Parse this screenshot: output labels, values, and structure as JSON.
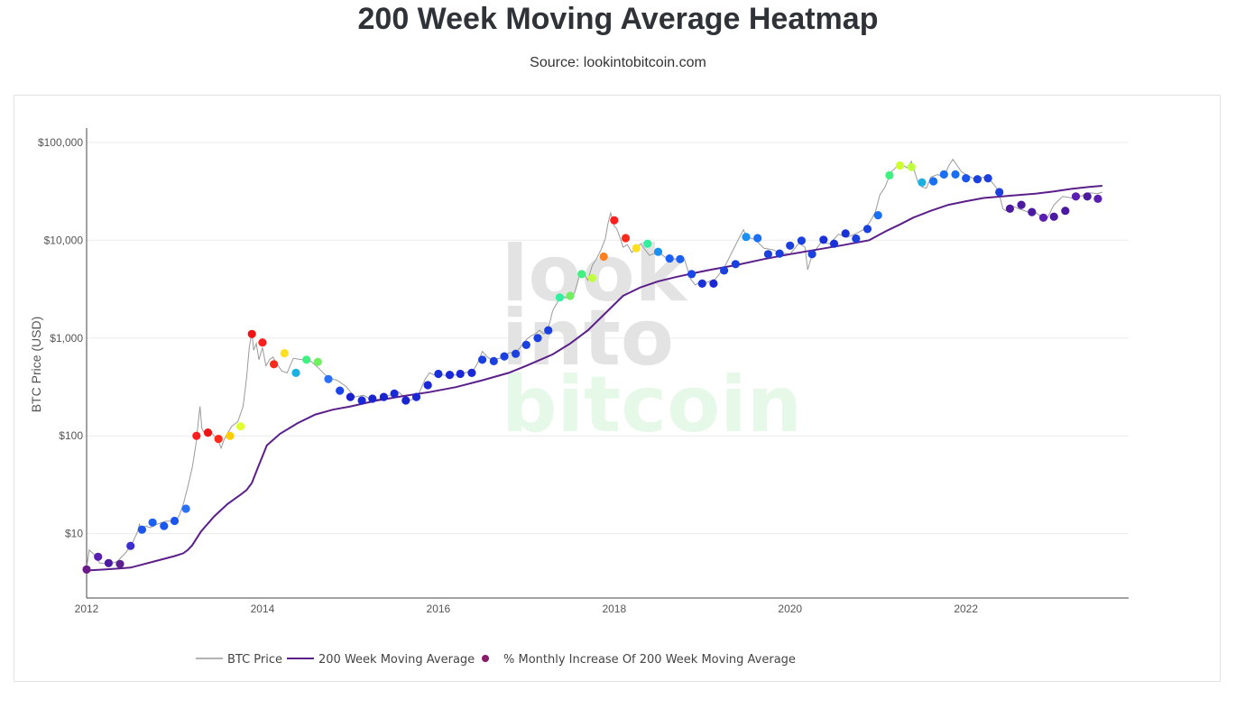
{
  "header": {
    "title": "200 Week Moving Average Heatmap",
    "subtitle": "Source: lookintobitcoin.com"
  },
  "watermark": {
    "line1": "look",
    "line2": "into",
    "line3": "bitcoin"
  },
  "colors": {
    "price_line": "#9a9a9a",
    "ma_line": "#5b1f8a",
    "grid": "#ececec",
    "watermark_gray": "#e3e3e3",
    "watermark_green": "#e6f8e8"
  },
  "legend": {
    "btc_price": "BTC Price",
    "ma": "200 Week Moving Average",
    "dots": "% Monthly Increase Of 200 Week Moving Average"
  },
  "chart_data": {
    "type": "line",
    "title": "200 Week Moving Average Heatmap",
    "ylabel": "BTC Price (USD)",
    "xlabel": "",
    "y_scale": "log",
    "xlim": [
      2012.0,
      2023.85
    ],
    "ylim": [
      2.2,
      140000
    ],
    "x_ticks": [
      2012,
      2014,
      2016,
      2018,
      2020,
      2022
    ],
    "x_tick_labels": [
      "2012",
      "2014",
      "2016",
      "2018",
      "2020",
      "2022"
    ],
    "y_ticks": [
      10,
      100,
      1000,
      10000,
      100000
    ],
    "y_tick_labels": [
      "$10",
      "$100",
      "$1,000",
      "$10,000",
      "$100,000"
    ],
    "grid": true,
    "legend_position": "bottom",
    "series": [
      {
        "name": "BTC Price",
        "color": "#9a9a9a",
        "x": [
          2012.0,
          2012.03,
          2012.08,
          2012.15,
          2012.25,
          2012.35,
          2012.45,
          2012.52,
          2012.58,
          2012.6,
          2012.63,
          2012.67,
          2012.72,
          2012.8,
          2012.9,
          2013.0,
          2013.05,
          2013.1,
          2013.15,
          2013.2,
          2013.22,
          2013.25,
          2013.27,
          2013.29,
          2013.31,
          2013.33,
          2013.38,
          2013.45,
          2013.5,
          2013.53,
          2013.56,
          2013.6,
          2013.65,
          2013.72,
          2013.78,
          2013.82,
          2013.85,
          2013.88,
          2013.9,
          2013.93,
          2013.96,
          2014.0,
          2014.04,
          2014.08,
          2014.12,
          2014.16,
          2014.22,
          2014.28,
          2014.35,
          2014.45,
          2014.55,
          2014.65,
          2014.75,
          2014.85,
          2014.95,
          2015.05,
          2015.15,
          2015.25,
          2015.35,
          2015.45,
          2015.55,
          2015.65,
          2015.75,
          2015.8,
          2015.85,
          2015.9,
          2015.95,
          2016.0,
          2016.1,
          2016.2,
          2016.3,
          2016.4,
          2016.45,
          2016.5,
          2016.55,
          2016.6,
          2016.7,
          2016.8,
          2016.9,
          2017.0,
          2017.05,
          2017.1,
          2017.15,
          2017.2,
          2017.25,
          2017.3,
          2017.35,
          2017.4,
          2017.45,
          2017.5,
          2017.55,
          2017.6,
          2017.65,
          2017.7,
          2017.75,
          2017.8,
          2017.85,
          2017.9,
          2017.93,
          2017.96,
          2018.0,
          2018.03,
          2018.06,
          2018.1,
          2018.15,
          2018.2,
          2018.3,
          2018.4,
          2018.5,
          2018.6,
          2018.7,
          2018.8,
          2018.87,
          2018.92,
          2018.97,
          2019.05,
          2019.15,
          2019.25,
          2019.35,
          2019.42,
          2019.47,
          2019.5,
          2019.55,
          2019.6,
          2019.7,
          2019.8,
          2019.9,
          2020.0,
          2020.1,
          2020.17,
          2020.2,
          2020.25,
          2020.35,
          2020.45,
          2020.55,
          2020.65,
          2020.75,
          2020.85,
          2020.92,
          2020.97,
          2021.02,
          2021.08,
          2021.15,
          2021.22,
          2021.28,
          2021.33,
          2021.38,
          2021.45,
          2021.5,
          2021.55,
          2021.6,
          2021.68,
          2021.75,
          2021.8,
          2021.85,
          2021.9,
          2021.95,
          2022.0,
          2022.1,
          2022.2,
          2022.3,
          2022.37,
          2022.42,
          2022.45,
          2022.5,
          2022.6,
          2022.7,
          2022.8,
          2022.87,
          2022.92,
          2023.0,
          2023.1,
          2023.2,
          2023.3,
          2023.4,
          2023.5,
          2023.55
        ],
        "values": [
          4.5,
          6.8,
          6.2,
          5.0,
          4.9,
          5.2,
          6.5,
          8.0,
          10.5,
          12.5,
          10.8,
          12.0,
          11.5,
          12.5,
          13.4,
          13.5,
          15,
          20,
          30,
          47,
          60,
          90,
          140,
          200,
          120,
          110,
          118,
          100,
          88,
          75,
          90,
          105,
          125,
          140,
          200,
          400,
          800,
          1150,
          750,
          880,
          600,
          800,
          520,
          600,
          640,
          550,
          460,
          440,
          620,
          600,
          580,
          480,
          390,
          370,
          320,
          250,
          260,
          230,
          240,
          260,
          280,
          230,
          240,
          300,
          380,
          440,
          420,
          430,
          410,
          420,
          440,
          470,
          560,
          730,
          650,
          600,
          620,
          700,
          740,
          960,
          1050,
          1100,
          1200,
          1100,
          1250,
          1900,
          2300,
          2700,
          2600,
          2500,
          2900,
          4200,
          4600,
          3900,
          5500,
          6500,
          8000,
          10500,
          15000,
          19000,
          14000,
          13000,
          11000,
          8500,
          9000,
          7500,
          9200,
          7000,
          7600,
          6500,
          6400,
          6300,
          4000,
          3500,
          3700,
          3700,
          4000,
          5200,
          7900,
          10500,
          12800,
          11000,
          10500,
          10200,
          8300,
          8000,
          7400,
          7200,
          9300,
          8500,
          5000,
          7000,
          9500,
          9200,
          11500,
          10700,
          11700,
          13000,
          16000,
          19500,
          29000,
          35000,
          50000,
          57000,
          59000,
          55000,
          64000,
          40000,
          35000,
          34000,
          44000,
          47000,
          43000,
          57000,
          67000,
          58000,
          50000,
          47000,
          42000,
          44000,
          39000,
          32000,
          21000,
          20000,
          23000,
          21000,
          19500,
          19000,
          17000,
          16500,
          23000,
          28000,
          27000,
          28000,
          30500,
          30000,
          31000
        ],
        "dots": {
          "x": [
            2012.0,
            2012.13,
            2012.25,
            2012.38,
            2012.5,
            2012.63,
            2012.75,
            2012.88,
            2013.0,
            2013.13,
            2013.25,
            2013.38,
            2013.5,
            2013.63,
            2013.75,
            2013.88,
            2014.0,
            2014.13,
            2014.25,
            2014.38,
            2014.5,
            2014.63,
            2014.75,
            2014.88,
            2015.0,
            2015.13,
            2015.25,
            2015.38,
            2015.5,
            2015.63,
            2015.75,
            2015.88,
            2016.0,
            2016.13,
            2016.25,
            2016.38,
            2016.5,
            2016.63,
            2016.75,
            2016.88,
            2017.0,
            2017.13,
            2017.25,
            2017.38,
            2017.5,
            2017.63,
            2017.75,
            2017.88,
            2018.0,
            2018.13,
            2018.25,
            2018.38,
            2018.5,
            2018.63,
            2018.75,
            2018.88,
            2019.0,
            2019.13,
            2019.25,
            2019.38,
            2019.5,
            2019.63,
            2019.75,
            2019.88,
            2020.0,
            2020.13,
            2020.25,
            2020.38,
            2020.5,
            2020.63,
            2020.75,
            2020.88,
            2021.0,
            2021.13,
            2021.25,
            2021.38,
            2021.5,
            2021.63,
            2021.75,
            2021.88,
            2022.0,
            2022.13,
            2022.25,
            2022.38,
            2022.5,
            2022.63,
            2022.75,
            2022.88,
            2023.0,
            2023.13,
            2023.25,
            2023.38,
            2023.5
          ],
          "values": [
            4.3,
            5.8,
            5.0,
            4.9,
            7.5,
            11.0,
            13.0,
            12.0,
            13.5,
            18.0,
            100,
            108,
            93,
            100,
            125,
            1100,
            900,
            540,
            700,
            440,
            600,
            570,
            380,
            290,
            250,
            230,
            240,
            250,
            270,
            230,
            250,
            330,
            430,
            420,
            430,
            440,
            600,
            580,
            650,
            690,
            850,
            1000,
            1200,
            2600,
            2700,
            4500,
            4100,
            6800,
            16000,
            10500,
            8300,
            9200,
            7600,
            6500,
            6400,
            4500,
            3600,
            3600,
            4900,
            5700,
            10800,
            10500,
            7200,
            7300,
            8800,
            9900,
            7200,
            10100,
            9200,
            11700,
            10400,
            13000,
            18000,
            46000,
            58000,
            56000,
            39000,
            40000,
            47000,
            47000,
            43000,
            42000,
            43000,
            31000,
            21000,
            23000,
            19400,
            17000,
            17400,
            20000,
            28000,
            28000,
            26500
          ],
          "colors": [
            "#6a1a8a",
            "#5a1fb0",
            "#4b1aa0",
            "#5d2090",
            "#3b2fd0",
            "#1a55f0",
            "#1a60f5",
            "#1a58f0",
            "#1a55f0",
            "#2a70f8",
            "#ff1e1e",
            "#ee1414",
            "#ff2a1a",
            "#ffcc00",
            "#e0ff30",
            "#ee1414",
            "#ff1e1e",
            "#ff2a1a",
            "#ffe020",
            "#1ab0e0",
            "#40f080",
            "#70f060",
            "#2a70f8",
            "#1a45e8",
            "#1a20d0",
            "#1a28d8",
            "#1a25d0",
            "#1a25d0",
            "#1a28d8",
            "#1a25d0",
            "#1a28d8",
            "#1a28d8",
            "#1a30d8",
            "#1a28d8",
            "#1a28d8",
            "#1a28d8",
            "#1a40e0",
            "#1a40e0",
            "#1a40e0",
            "#1a40e0",
            "#1a40e0",
            "#1a40e0",
            "#1a40e0",
            "#30f0a0",
            "#70f060",
            "#40f080",
            "#c0ff40",
            "#ff8020",
            "#ff1e1e",
            "#ff2a1a",
            "#ffe020",
            "#30f0a0",
            "#1a90f0",
            "#1a60f5",
            "#1a60f5",
            "#1a45e8",
            "#1a30d8",
            "#1a28d8",
            "#1a40e0",
            "#1a40e0",
            "#1a90f0",
            "#1a70f5",
            "#1a40e0",
            "#1a40e0",
            "#1a40e0",
            "#1a40e0",
            "#1a40e0",
            "#1a30d8",
            "#1a30d8",
            "#1a30d8",
            "#1a40e0",
            "#1a40e0",
            "#1a70f5",
            "#40f080",
            "#d0ff30",
            "#c0ff40",
            "#1ab0e0",
            "#1a70f5",
            "#1a70f5",
            "#1a70f5",
            "#1a55f0",
            "#1a40e0",
            "#1a40e0",
            "#1a40e0",
            "#4b1aa0",
            "#4b1aa0",
            "#4b1aa0",
            "#5a1fb0",
            "#4b1aa0",
            "#4b1aa0",
            "#5a1fb0",
            "#4b1aa0",
            "#5a1fb0"
          ]
        }
      },
      {
        "name": "200 Week Moving Average",
        "color": "#5b1f8a",
        "x": [
          2012.0,
          2012.2,
          2012.5,
          2012.8,
          2013.0,
          2013.1,
          2013.15,
          2013.2,
          2013.3,
          2013.45,
          2013.6,
          2013.75,
          2013.82,
          2013.88,
          2013.95,
          2014.05,
          2014.2,
          2014.4,
          2014.6,
          2014.8,
          2015.0,
          2015.3,
          2015.6,
          2015.9,
          2016.2,
          2016.5,
          2016.8,
          2017.0,
          2017.3,
          2017.5,
          2017.7,
          2017.9,
          2018.0,
          2018.1,
          2018.3,
          2018.5,
          2018.7,
          2018.9,
          2019.1,
          2019.4,
          2019.7,
          2020.0,
          2020.3,
          2020.6,
          2020.9,
          2021.0,
          2021.1,
          2021.25,
          2021.4,
          2021.6,
          2021.8,
          2022.0,
          2022.2,
          2022.5,
          2022.8,
          2023.0,
          2023.2,
          2023.4,
          2023.55
        ],
        "values": [
          4.2,
          4.3,
          4.5,
          5.3,
          5.9,
          6.3,
          6.8,
          7.6,
          10.5,
          15,
          20,
          25,
          28,
          33,
          48,
          80,
          105,
          135,
          165,
          185,
          200,
          230,
          255,
          280,
          315,
          370,
          440,
          520,
          680,
          880,
          1200,
          1800,
          2200,
          2700,
          3300,
          3800,
          4200,
          4600,
          5000,
          5600,
          6400,
          7200,
          8000,
          8900,
          10000,
          11200,
          12500,
          14500,
          17000,
          20000,
          23000,
          25000,
          27000,
          28500,
          30000,
          31500,
          33500,
          35000,
          36000
        ]
      }
    ]
  }
}
